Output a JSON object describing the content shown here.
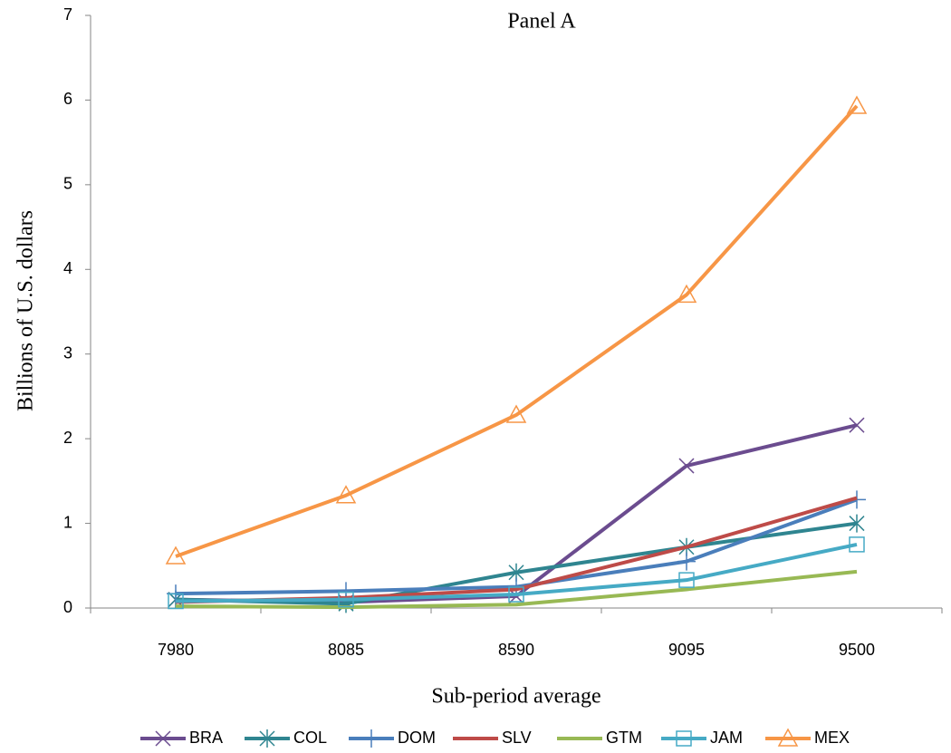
{
  "chart_data": {
    "type": "line",
    "title": "Panel A",
    "x_label": "Sub-period average",
    "y_label": "Billions of U.S. dollars",
    "categories": [
      "7980",
      "8085",
      "8590",
      "9095",
      "9500"
    ],
    "ylim": [
      0,
      7
    ],
    "yticks": [
      0,
      1,
      2,
      3,
      4,
      5,
      6,
      7
    ],
    "series": [
      {
        "name": "BRA",
        "color": "#6b4c8f",
        "marker": "x",
        "values": [
          0.1,
          0.07,
          0.14,
          1.68,
          2.16
        ]
      },
      {
        "name": "COL",
        "color": "#2f8590",
        "marker": "asterisk",
        "values": [
          0.1,
          0.05,
          0.42,
          0.72,
          1.0
        ]
      },
      {
        "name": "DOM",
        "color": "#4a7ebb",
        "marker": "plus",
        "values": [
          0.17,
          0.2,
          0.25,
          0.55,
          1.28
        ]
      },
      {
        "name": "SLV",
        "color": "#be4b48",
        "marker": "none",
        "values": [
          0.07,
          0.12,
          0.22,
          0.72,
          1.3
        ]
      },
      {
        "name": "GTM",
        "color": "#98b954",
        "marker": "none",
        "values": [
          0.02,
          0.01,
          0.04,
          0.22,
          0.43
        ]
      },
      {
        "name": "JAM",
        "color": "#46aac5",
        "marker": "square",
        "values": [
          0.08,
          0.1,
          0.16,
          0.33,
          0.75
        ]
      },
      {
        "name": "MEX",
        "color": "#f79646",
        "marker": "triangle",
        "values": [
          0.61,
          1.33,
          2.28,
          3.7,
          5.93
        ]
      }
    ]
  }
}
